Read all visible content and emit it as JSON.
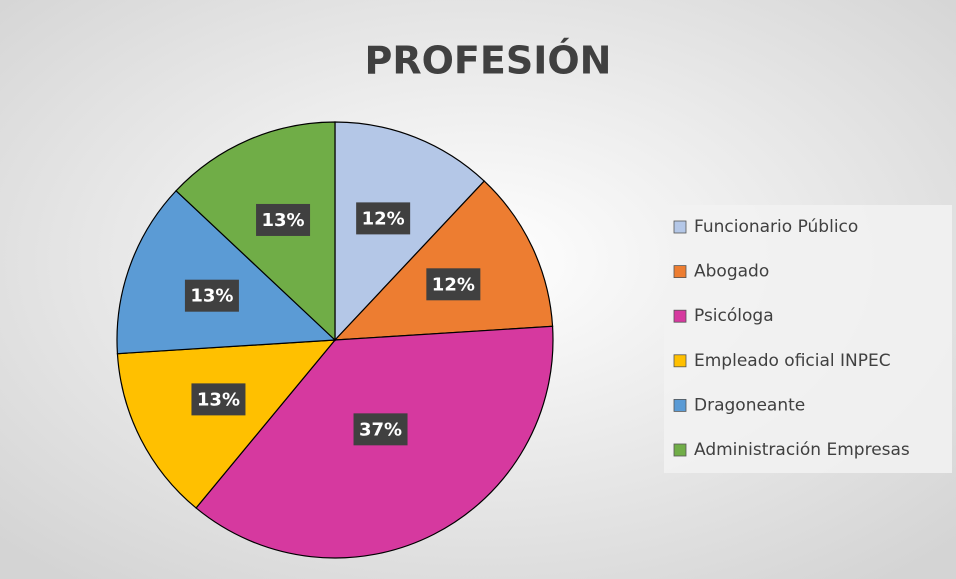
{
  "chart_data": {
    "type": "pie",
    "title": "PROFESIÓN",
    "categories": [
      "Funcionario Público",
      "Abogado",
      "Psicóloga",
      "Empleado oficial INPEC",
      "Dragoneante",
      "Administración Empresas"
    ],
    "values": [
      12,
      12,
      37,
      13,
      13,
      13
    ],
    "value_labels": [
      "12%",
      "12%",
      "37%",
      "13%",
      "13%",
      "13%"
    ],
    "colors": [
      "#b4c7e7",
      "#ed7d31",
      "#d6399f",
      "#ffc000",
      "#5b9bd5",
      "#70ad47"
    ],
    "legend": "right"
  }
}
